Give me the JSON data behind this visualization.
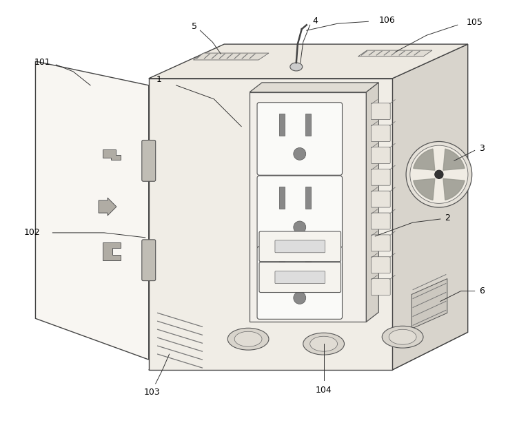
{
  "background_color": "#ffffff",
  "figure_width": 7.66,
  "figure_height": 6.33,
  "dpi": 100,
  "face_color": "#f5f3ef",
  "face_edge": "#444444",
  "top_color": "#ede9e1",
  "right_color": "#d8d4cc",
  "bottom_color": "#e0dcd4",
  "door_color": "#f8f6f2",
  "panel_color": "#f0ece4",
  "panel_edge": "#555555",
  "outlet_face": "#ffffff",
  "outlet_edge": "#555555",
  "line_color": "#444444",
  "label_fontsize": 9
}
